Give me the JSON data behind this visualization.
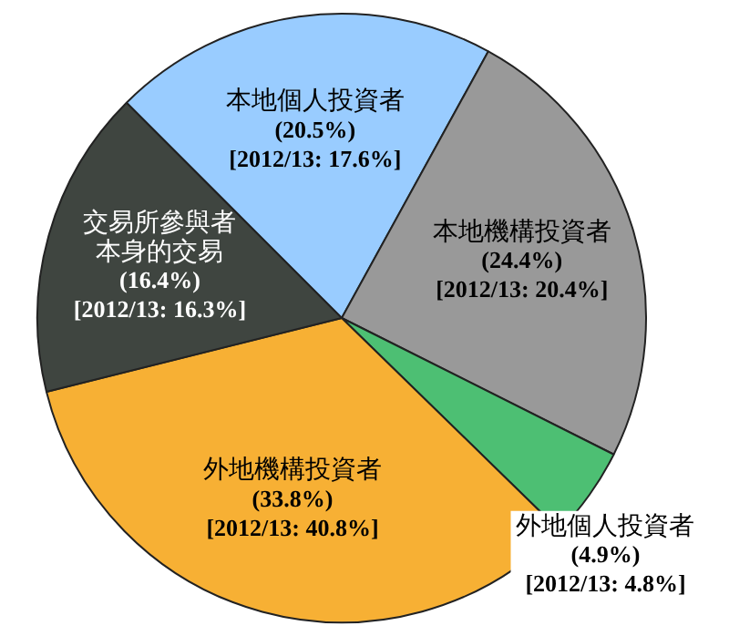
{
  "chart_data": {
    "type": "pie",
    "categories": [
      "本地個人投資者",
      "本地機構投資者",
      "外地個人投資者",
      "外地機構投資者",
      "交易所參與者本身的交易"
    ],
    "values": [
      20.5,
      24.4,
      4.9,
      33.8,
      16.4
    ],
    "colors": [
      "#99ccff",
      "#999999",
      "#4dbf73",
      "#f7b034",
      "#3f4540"
    ],
    "value_labels": [
      "(20.5%)",
      "(24.4%)",
      "(4.9%)",
      "(33.8%)",
      "(16.4%)"
    ],
    "annotations": [
      {
        "text": "[2012/13: 17.6%]",
        "x": "本地個人投資者"
      },
      {
        "text": "[2012/13: 20.4%]",
        "x": "本地機構投資者"
      },
      {
        "text": "[2012/13: 4.8%]",
        "x": "外地個人投資者"
      },
      {
        "text": "[2012/13: 40.8%]",
        "x": "外地機構投資者"
      },
      {
        "text": "[2012/13: 16.3%]",
        "x": "交易所參與者本身的交易"
      }
    ],
    "legend": false
  }
}
